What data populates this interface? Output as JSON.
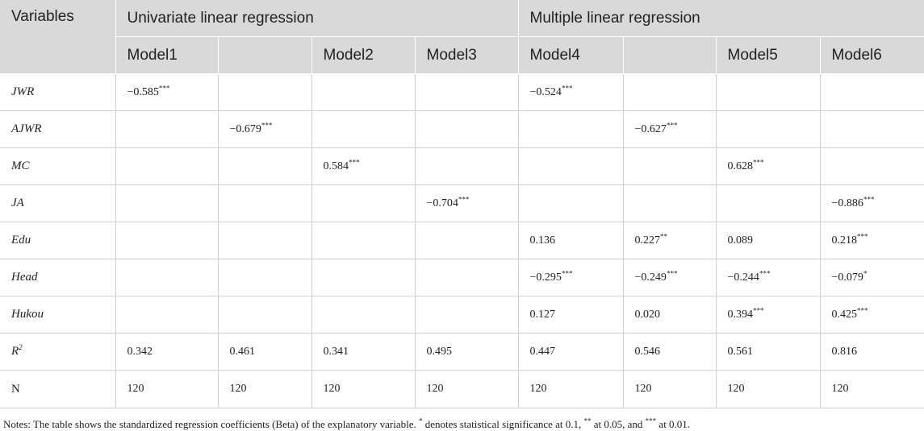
{
  "header": {
    "variables": "Variables",
    "group1": "Univariate linear regression",
    "group2": "Multiple linear regression",
    "models": [
      "Model1",
      "",
      "Model2",
      "Model3",
      "Model4",
      "",
      "Model5",
      "Model6"
    ]
  },
  "rows": [
    {
      "var": "JWR",
      "italic": true,
      "sup": "",
      "cells": [
        [
          "−0.585",
          "***"
        ],
        [
          "",
          ""
        ],
        [
          "",
          ""
        ],
        [
          "",
          ""
        ],
        [
          "−0.524",
          "***"
        ],
        [
          "",
          ""
        ],
        [
          "",
          ""
        ],
        [
          "",
          ""
        ]
      ]
    },
    {
      "var": "AJWR",
      "italic": true,
      "sup": "",
      "cells": [
        [
          "",
          ""
        ],
        [
          "−0.679",
          "***"
        ],
        [
          "",
          ""
        ],
        [
          "",
          ""
        ],
        [
          "",
          ""
        ],
        [
          "−0.627",
          "***"
        ],
        [
          "",
          ""
        ],
        [
          "",
          ""
        ]
      ]
    },
    {
      "var": "MC",
      "italic": true,
      "sup": "",
      "cells": [
        [
          "",
          ""
        ],
        [
          "",
          ""
        ],
        [
          "0.584",
          "***"
        ],
        [
          "",
          ""
        ],
        [
          "",
          ""
        ],
        [
          "",
          ""
        ],
        [
          "0.628",
          "***"
        ],
        [
          "",
          ""
        ]
      ]
    },
    {
      "var": "JA",
      "italic": true,
      "sup": "",
      "cells": [
        [
          "",
          ""
        ],
        [
          "",
          ""
        ],
        [
          "",
          ""
        ],
        [
          "−0.704",
          "***"
        ],
        [
          "",
          ""
        ],
        [
          "",
          ""
        ],
        [
          "",
          ""
        ],
        [
          "−0.886",
          "***"
        ]
      ]
    },
    {
      "var": "Edu",
      "italic": true,
      "sup": "",
      "cells": [
        [
          "",
          ""
        ],
        [
          "",
          ""
        ],
        [
          "",
          ""
        ],
        [
          "",
          ""
        ],
        [
          "0.136",
          ""
        ],
        [
          "0.227",
          "**"
        ],
        [
          "0.089",
          ""
        ],
        [
          "0.218",
          "***"
        ]
      ]
    },
    {
      "var": "Head",
      "italic": true,
      "sup": "",
      "cells": [
        [
          "",
          ""
        ],
        [
          "",
          ""
        ],
        [
          "",
          ""
        ],
        [
          "",
          ""
        ],
        [
          "−0.295",
          "***"
        ],
        [
          "−0.249",
          "***"
        ],
        [
          "−0.244",
          "***"
        ],
        [
          "−0.079",
          "*"
        ]
      ]
    },
    {
      "var": "Hukou",
      "italic": true,
      "sup": "",
      "cells": [
        [
          "",
          ""
        ],
        [
          "",
          ""
        ],
        [
          "",
          ""
        ],
        [
          "",
          ""
        ],
        [
          "0.127",
          ""
        ],
        [
          "0.020",
          ""
        ],
        [
          "0.394",
          "***"
        ],
        [
          "0.425",
          "***"
        ]
      ]
    },
    {
      "var": "R",
      "italic": true,
      "sup": "2",
      "cells": [
        [
          "0.342",
          ""
        ],
        [
          "0.461",
          ""
        ],
        [
          "0.341",
          ""
        ],
        [
          "0.495",
          ""
        ],
        [
          "0.447",
          ""
        ],
        [
          "0.546",
          ""
        ],
        [
          "0.561",
          ""
        ],
        [
          "0.816",
          ""
        ]
      ]
    },
    {
      "var": "N",
      "italic": false,
      "sup": "",
      "cells": [
        [
          "120",
          ""
        ],
        [
          "120",
          ""
        ],
        [
          "120",
          ""
        ],
        [
          "120",
          ""
        ],
        [
          "120",
          ""
        ],
        [
          "120",
          ""
        ],
        [
          "120",
          ""
        ],
        [
          "120",
          ""
        ]
      ]
    }
  ],
  "notes": {
    "p1": "Notes: The table shows the standardized regression coefficients (Beta) of the explanatory variable. ",
    "s1": "*",
    "p2": " denotes statistical significance at 0.1, ",
    "s2": "**",
    "p3": " at 0.05, and ",
    "s3": "***",
    "p4": " at 0.01."
  }
}
